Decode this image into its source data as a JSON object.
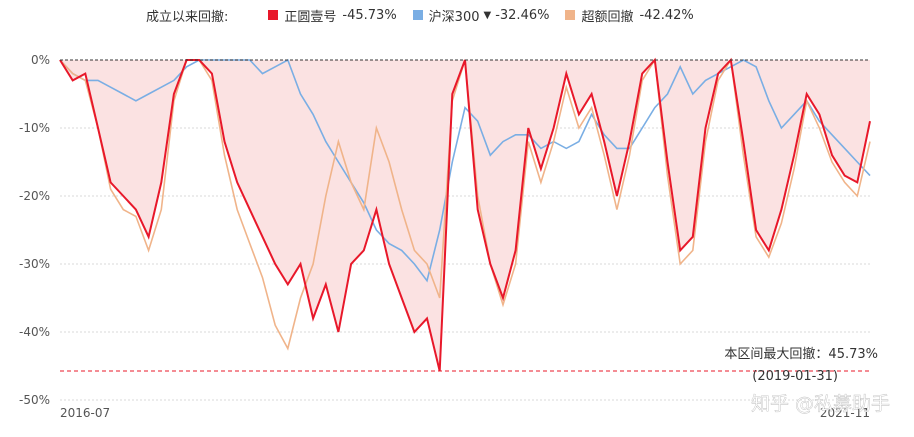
{
  "legend": {
    "title": "成立以来回撤:",
    "series_labels": [
      {
        "name": "正圆壹号",
        "value": "-45.73%"
      },
      {
        "name": "沪深300",
        "value": "-32.46%",
        "marker": "▼"
      },
      {
        "name": "超额回撤",
        "value": "-42.42%"
      }
    ]
  },
  "annotation": {
    "line1": "本区间最大回撤：45.73%",
    "line2": "(2019-01-31)"
  },
  "watermark": "知乎 @私募助手",
  "colors": {
    "fund": "#e8182a",
    "hs300": "#7aaee4",
    "excess": "#f0b48a",
    "fill": "#fbe2e2",
    "zero_line": "#333333",
    "max_dd_line": "#e8182a",
    "grid": "#d9d9d9"
  },
  "chart_data": {
    "type": "line",
    "title": "",
    "xlabel": "",
    "ylabel": "",
    "x_ticks": [
      "2016-07",
      "2021-11"
    ],
    "y_ticks": [
      "0%",
      "-10%",
      "-20%",
      "-30%",
      "-40%",
      "-50%"
    ],
    "ylim": [
      -50,
      0
    ],
    "grid": true,
    "legend_position": "top",
    "max_drawdown": {
      "value": -45.73,
      "date": "2019-01-31"
    },
    "x": [
      "2016-07",
      "2016-08",
      "2016-09",
      "2016-10",
      "2016-11",
      "2016-12",
      "2017-01",
      "2017-02",
      "2017-03",
      "2017-04",
      "2017-05",
      "2017-06",
      "2017-07",
      "2017-08",
      "2017-09",
      "2017-10",
      "2017-11",
      "2017-12",
      "2018-01",
      "2018-02",
      "2018-03",
      "2018-04",
      "2018-05",
      "2018-06",
      "2018-07",
      "2018-08",
      "2018-09",
      "2018-10",
      "2018-11",
      "2018-12",
      "2019-01",
      "2019-02",
      "2019-03",
      "2019-04",
      "2019-05",
      "2019-06",
      "2019-07",
      "2019-08",
      "2019-09",
      "2019-10",
      "2019-11",
      "2019-12",
      "2020-01",
      "2020-02",
      "2020-03",
      "2020-04",
      "2020-05",
      "2020-06",
      "2020-07",
      "2020-08",
      "2020-09",
      "2020-10",
      "2020-11",
      "2020-12",
      "2021-01",
      "2021-02",
      "2021-03",
      "2021-04",
      "2021-05",
      "2021-06",
      "2021-07",
      "2021-08",
      "2021-09",
      "2021-10",
      "2021-11"
    ],
    "series": [
      {
        "name": "正圆壹号",
        "values": [
          0,
          -3,
          -2,
          -10,
          -18,
          -20,
          -22,
          -26,
          -18,
          -5,
          0,
          0,
          -2,
          -12,
          -18,
          -22,
          -26,
          -30,
          -33,
          -30,
          -38,
          -33,
          -40,
          -30,
          -28,
          -22,
          -30,
          -35,
          -40,
          -38,
          -45.73,
          -5,
          0,
          -22,
          -30,
          -35,
          -28,
          -10,
          -16,
          -10,
          -2,
          -8,
          -5,
          -12,
          -20,
          -12,
          -2,
          0,
          -15,
          -28,
          -26,
          -10,
          -2,
          0,
          -12,
          -25,
          -28,
          -22,
          -14,
          -5,
          -8,
          -14,
          -17,
          -18,
          -9
        ]
      },
      {
        "name": "沪深300",
        "values": [
          0,
          -2,
          -3,
          -3,
          -4,
          -5,
          -6,
          -5,
          -4,
          -3,
          -1,
          0,
          0,
          0,
          0,
          0,
          -2,
          -1,
          0,
          -5,
          -8,
          -12,
          -15,
          -18,
          -21,
          -25,
          -27,
          -28,
          -30,
          -32.46,
          -25,
          -15,
          -7,
          -9,
          -14,
          -12,
          -11,
          -11,
          -13,
          -12,
          -13,
          -12,
          -8,
          -11,
          -13,
          -13,
          -10,
          -7,
          -5,
          -1,
          -5,
          -3,
          -2,
          -1,
          0,
          -1,
          -6,
          -10,
          -8,
          -6,
          -9,
          -11,
          -13,
          -15,
          -17
        ]
      },
      {
        "name": "超额回撤",
        "values": [
          0,
          -2,
          -3,
          -10,
          -19,
          -22,
          -23,
          -28,
          -22,
          -6,
          0,
          0,
          -3,
          -14,
          -22,
          -27,
          -32,
          -39,
          -42.42,
          -35,
          -30,
          -20,
          -12,
          -18,
          -22,
          -10,
          -15,
          -22,
          -28,
          -30,
          -35,
          -6,
          0,
          -20,
          -30,
          -36,
          -30,
          -12,
          -18,
          -12,
          -4,
          -10,
          -7,
          -14,
          -22,
          -14,
          -3,
          0,
          -17,
          -30,
          -28,
          -12,
          -3,
          0,
          -14,
          -26,
          -29,
          -24,
          -16,
          -6,
          -10,
          -15,
          -18,
          -20,
          -12
        ]
      }
    ]
  }
}
